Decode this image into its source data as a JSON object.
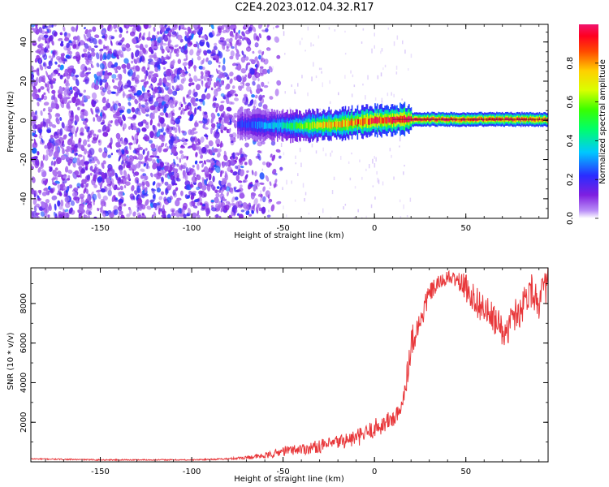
{
  "title": "C2E4.2023.012.04.32.R17",
  "chart_data": [
    {
      "type": "heatmap",
      "xlabel": "Height of straight line (km)",
      "ylabel": "Frequency (Hz)",
      "xlim": [
        -188,
        95
      ],
      "ylim": [
        -50,
        49
      ],
      "xticks": [
        -150,
        -100,
        -50,
        0,
        50
      ],
      "yticks": [
        -40,
        -20,
        0,
        20,
        40
      ],
      "colorbar": {
        "label": "Normalized spectral amplitude",
        "ticks": [
          0.0,
          0.2,
          0.4,
          0.6,
          0.8
        ],
        "range": [
          0,
          1
        ],
        "colormap": "rainbow"
      },
      "signal_band": {
        "description": "narrow spectral line",
        "x_start": -75,
        "x_end": 95,
        "center_frequency": [
          [
            -75,
            -2
          ],
          [
            -40,
            -3
          ],
          [
            -20,
            -2
          ],
          [
            0,
            0
          ],
          [
            20,
            0.5
          ],
          [
            95,
            0.5
          ]
        ],
        "peak_amplitude": [
          [
            -75,
            0.2
          ],
          [
            -50,
            0.4
          ],
          [
            -30,
            0.7
          ],
          [
            -10,
            0.85
          ],
          [
            10,
            0.95
          ],
          [
            95,
            0.9
          ]
        ]
      },
      "noise": {
        "x_range": [
          -188,
          -60
        ],
        "amplitude": [
          0.05,
          0.3
        ]
      },
      "grid": false
    },
    {
      "type": "line",
      "xlabel": "Height of straight line (km)",
      "ylabel": "SNR (10 * v/v)",
      "xlim": [
        -188,
        95
      ],
      "ylim": [
        0,
        9800
      ],
      "xticks": [
        -150,
        -100,
        -50,
        0,
        50
      ],
      "yticks": [
        2000,
        4000,
        6000,
        8000
      ],
      "color": "#e8373a",
      "series": [
        {
          "x": [
            -188,
            -150,
            -100,
            -80,
            -60,
            -55,
            -50,
            -45,
            -40,
            -35,
            -30,
            -25,
            -20,
            -15,
            -10,
            -5,
            0,
            5,
            10,
            14,
            16,
            18,
            20,
            22,
            25,
            28,
            30,
            35,
            40,
            45,
            50,
            55,
            60,
            65,
            70,
            72,
            75,
            80,
            85,
            90,
            95
          ],
          "y": [
            150,
            100,
            100,
            150,
            300,
            400,
            550,
            600,
            650,
            700,
            800,
            850,
            1000,
            1100,
            1200,
            1400,
            1700,
            1900,
            2200,
            2400,
            3500,
            4500,
            6000,
            6500,
            7000,
            8000,
            8500,
            9000,
            9300,
            9200,
            8800,
            8200,
            7700,
            7200,
            6700,
            6300,
            7300,
            7700,
            8800,
            8100,
            9100
          ],
          "noise_amplitude": [
            30,
            30,
            30,
            40,
            150,
            200,
            250,
            250,
            300,
            300,
            350,
            350,
            400,
            400,
            450,
            450,
            500,
            500,
            500,
            500,
            600,
            700,
            800,
            800,
            700,
            600,
            500,
            400,
            350,
            400,
            700,
            800,
            800,
            800,
            800,
            700,
            800,
            900,
            900,
            900,
            900
          ]
        }
      ],
      "grid": false
    }
  ]
}
